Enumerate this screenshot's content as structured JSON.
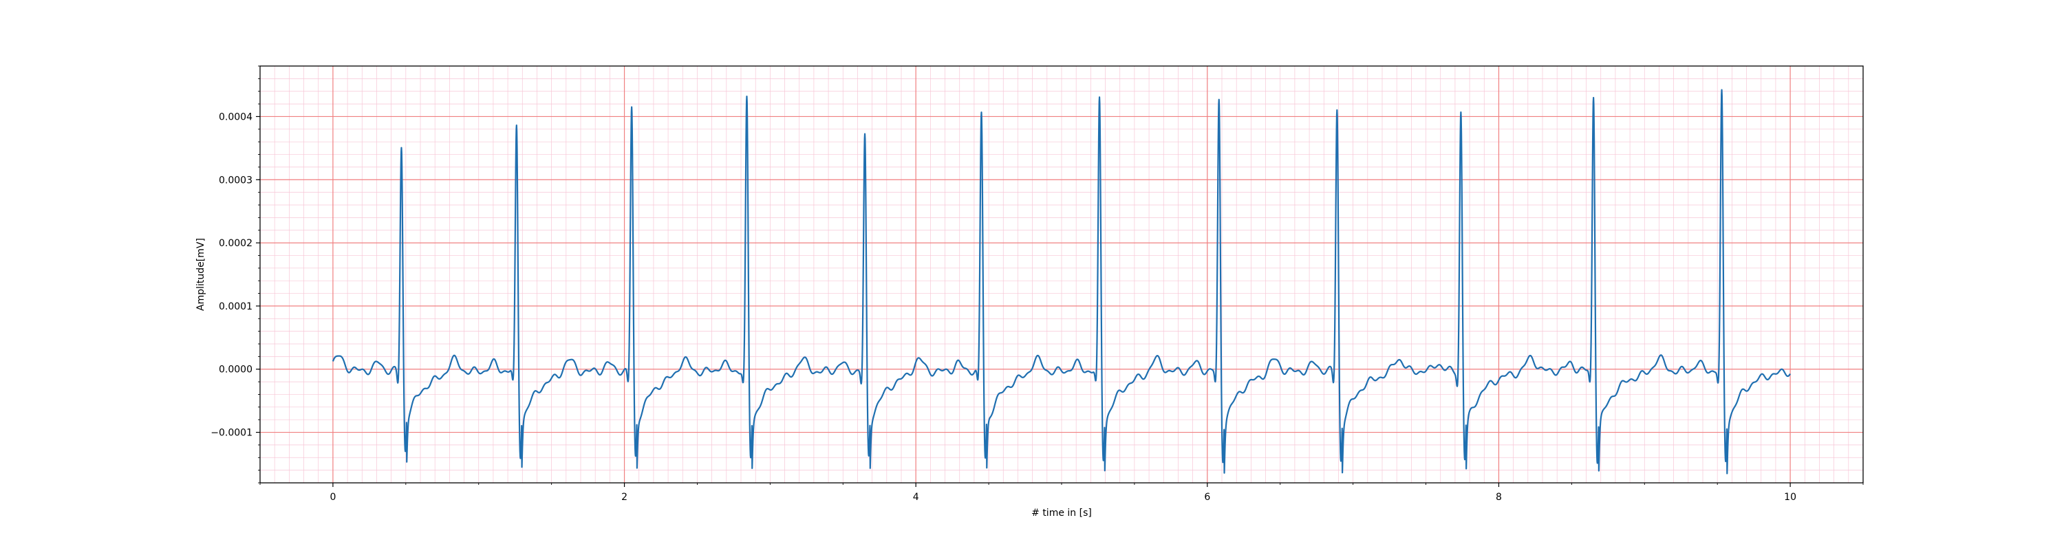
{
  "chart_data": {
    "type": "line",
    "title": "",
    "xlabel": "# time in [s]",
    "ylabel": "Amplitude[mV]",
    "xlim": [
      -0.5,
      10.5
    ],
    "ylim": [
      -0.00018,
      0.00048
    ],
    "xticks": [
      0,
      2,
      4,
      6,
      8,
      10
    ],
    "xtick_labels": [
      "0",
      "2",
      "4",
      "6",
      "8",
      "10"
    ],
    "yticks": [
      -0.0001,
      0.0,
      0.0001,
      0.0002,
      0.0003,
      0.0004
    ],
    "ytick_labels": [
      "−0.0001",
      "0.0000",
      "0.0001",
      "0.0002",
      "0.0003",
      "0.0004"
    ],
    "grid": "major and minor (ECG paper style)",
    "legend": "none",
    "colors": {
      "line": "#1f6fb0",
      "major_grid": "#f08080",
      "minor_grid": "#f7c6d6",
      "axes": "#000000"
    },
    "series": [
      {
        "beat_times_s": [
          0.47,
          1.26,
          2.05,
          2.84,
          3.65,
          4.45,
          5.26,
          6.08,
          6.89,
          7.74,
          8.65,
          9.53
        ],
        "beat_peak_mV": [
          0.000355,
          0.000388,
          0.000418,
          0.00043,
          0.000372,
          0.00041,
          0.00043,
          0.000428,
          0.000416,
          0.000411,
          0.000438,
          0.00044
        ],
        "beat_trough_mV": [
          -0.000129,
          -0.000137,
          -0.000141,
          -0.00014,
          -0.000139,
          -0.000143,
          -0.000142,
          -0.000143,
          -0.000145,
          -0.000144,
          -0.000146,
          -0.000146
        ],
        "start_time_s": 0.0,
        "end_time_s": 10.0
      }
    ]
  }
}
